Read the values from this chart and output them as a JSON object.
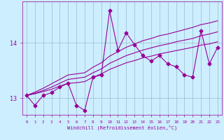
{
  "xlabel": "Windchill (Refroidissement éolien,°C)",
  "bg_color": "#cceeff",
  "line_color": "#990099",
  "grid_color": "#99bbcc",
  "x": [
    0,
    1,
    2,
    3,
    4,
    5,
    6,
    7,
    8,
    9,
    10,
    11,
    12,
    13,
    14,
    15,
    16,
    17,
    18,
    19,
    20,
    21,
    22,
    23
  ],
  "y_jagged": [
    13.05,
    12.87,
    13.05,
    13.1,
    13.2,
    13.27,
    12.87,
    12.78,
    13.38,
    13.42,
    14.58,
    13.87,
    14.18,
    13.97,
    13.77,
    13.67,
    13.77,
    13.62,
    13.57,
    13.42,
    13.38,
    14.22,
    13.62,
    13.92
  ],
  "y_smooth1": [
    13.05,
    13.08,
    13.12,
    13.16,
    13.22,
    13.27,
    13.28,
    13.3,
    13.38,
    13.44,
    13.52,
    13.58,
    13.64,
    13.68,
    13.73,
    13.76,
    13.8,
    13.83,
    13.86,
    13.89,
    13.92,
    13.96,
    13.98,
    14.02
  ],
  "y_smooth2": [
    13.05,
    13.11,
    13.18,
    13.26,
    13.34,
    13.42,
    13.44,
    13.46,
    13.56,
    13.64,
    13.76,
    13.84,
    13.92,
    13.98,
    14.04,
    14.08,
    14.13,
    14.16,
    14.2,
    14.24,
    14.28,
    14.33,
    14.36,
    14.4
  ],
  "y_smooth3": [
    13.05,
    13.09,
    13.14,
    13.2,
    13.27,
    13.34,
    13.36,
    13.38,
    13.46,
    13.53,
    13.63,
    13.7,
    13.77,
    13.82,
    13.87,
    13.91,
    13.95,
    13.98,
    14.02,
    14.05,
    14.08,
    14.13,
    14.16,
    14.2
  ],
  "ylim": [
    12.7,
    14.75
  ],
  "yticks": [
    13.0,
    14.0
  ],
  "ytick_labels": [
    "13",
    "14"
  ],
  "xlim": [
    -0.5,
    23.5
  ],
  "xticks": [
    0,
    1,
    2,
    3,
    4,
    5,
    6,
    7,
    8,
    9,
    10,
    11,
    12,
    13,
    14,
    15,
    16,
    17,
    18,
    19,
    20,
    21,
    22,
    23
  ],
  "markersize": 2.5,
  "linewidth": 0.8
}
